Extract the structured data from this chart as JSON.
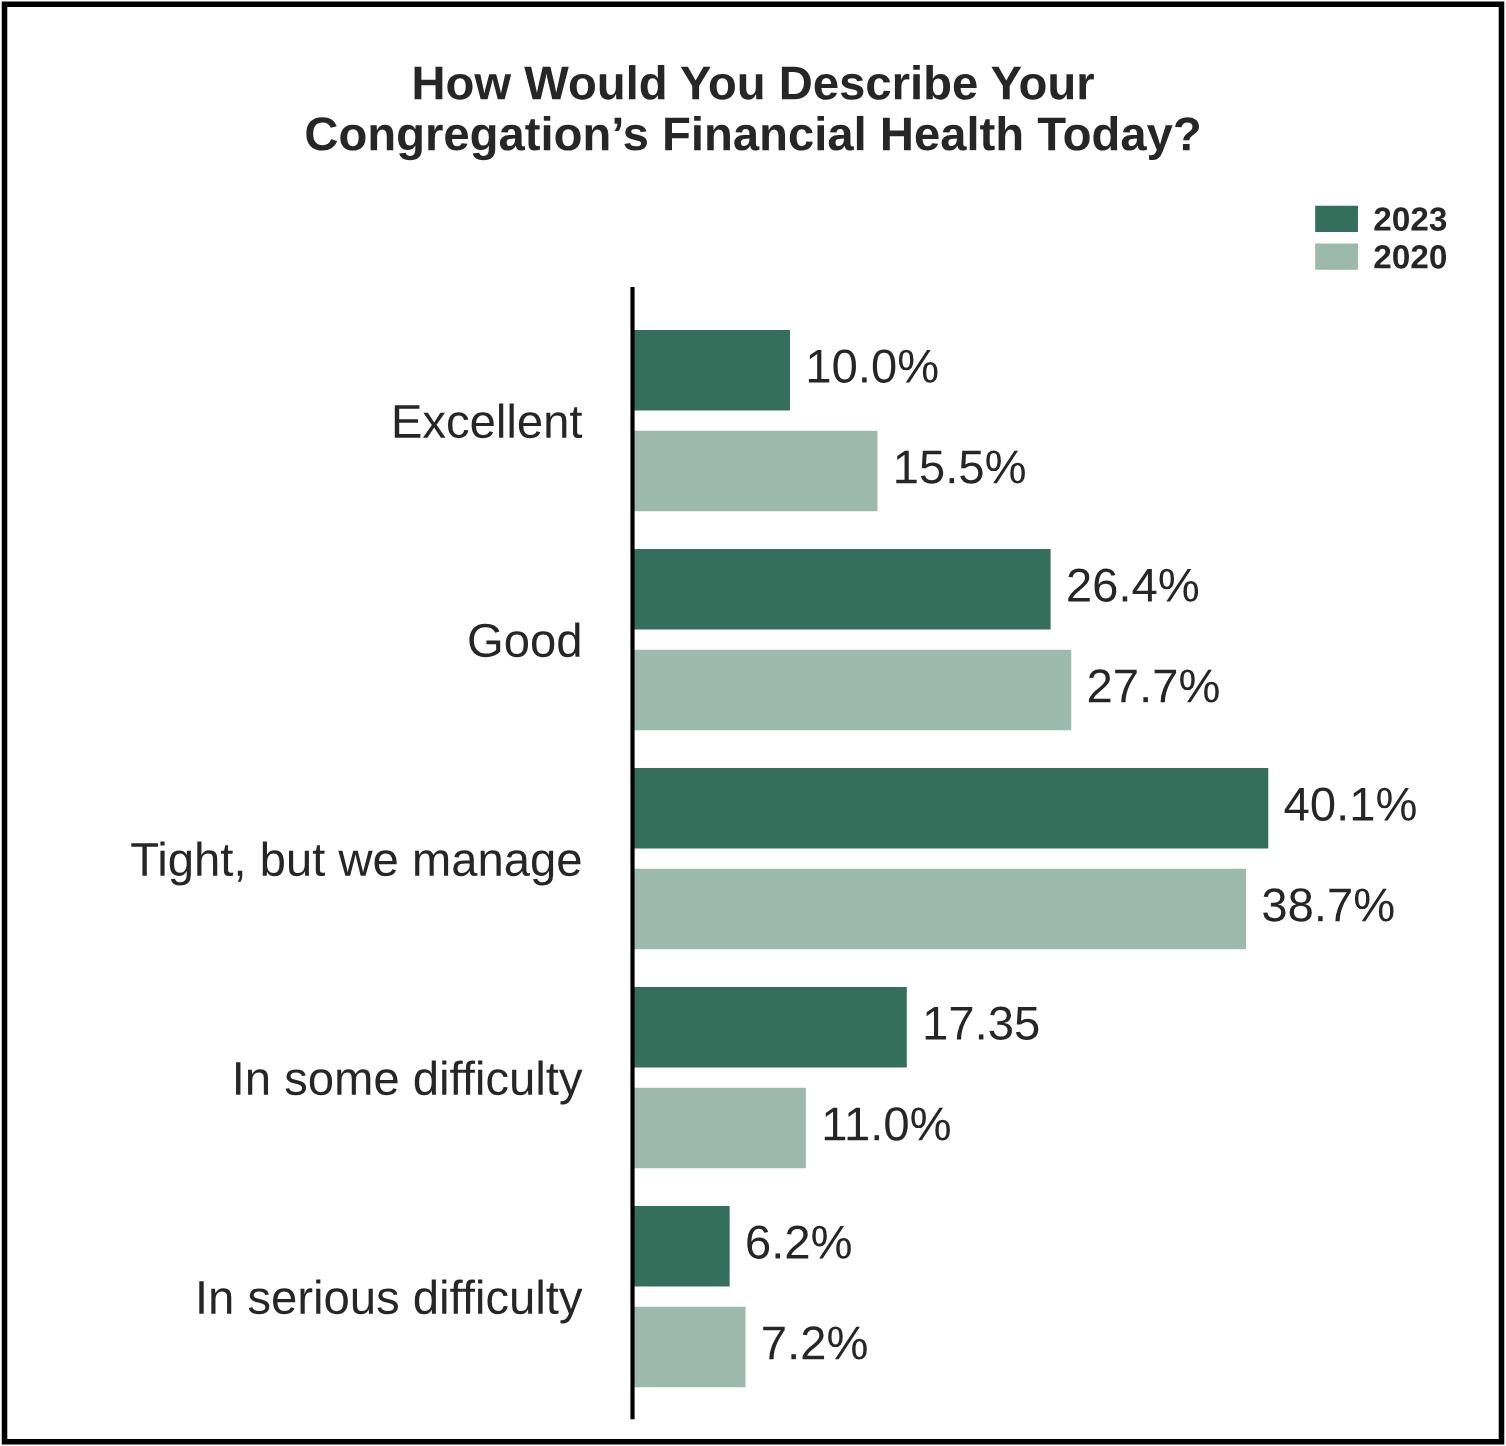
{
  "chart_data": {
    "type": "bar",
    "orientation": "horizontal",
    "title": "How Would You Describe Your\nCongregation’s Financial Health Today?",
    "categories": [
      "Excellent",
      "Good",
      "Tight, but we manage",
      "In some difficulty",
      "In serious difficulty"
    ],
    "series": [
      {
        "name": "2023",
        "color": "#336f5b",
        "values": [
          10.0,
          26.4,
          40.1,
          17.35,
          6.2
        ],
        "value_labels": [
          "10.0%",
          "26.4%",
          "40.1%",
          "17.35",
          "6.2%"
        ]
      },
      {
        "name": "2020",
        "color": "#9cb9ad",
        "values": [
          15.5,
          27.7,
          38.7,
          11.0,
          7.2
        ],
        "value_labels": [
          "15.5%",
          "27.7%",
          "38.7%",
          "11.0%",
          "7.2%"
        ]
      }
    ],
    "legend": "top right",
    "grid": false
  }
}
